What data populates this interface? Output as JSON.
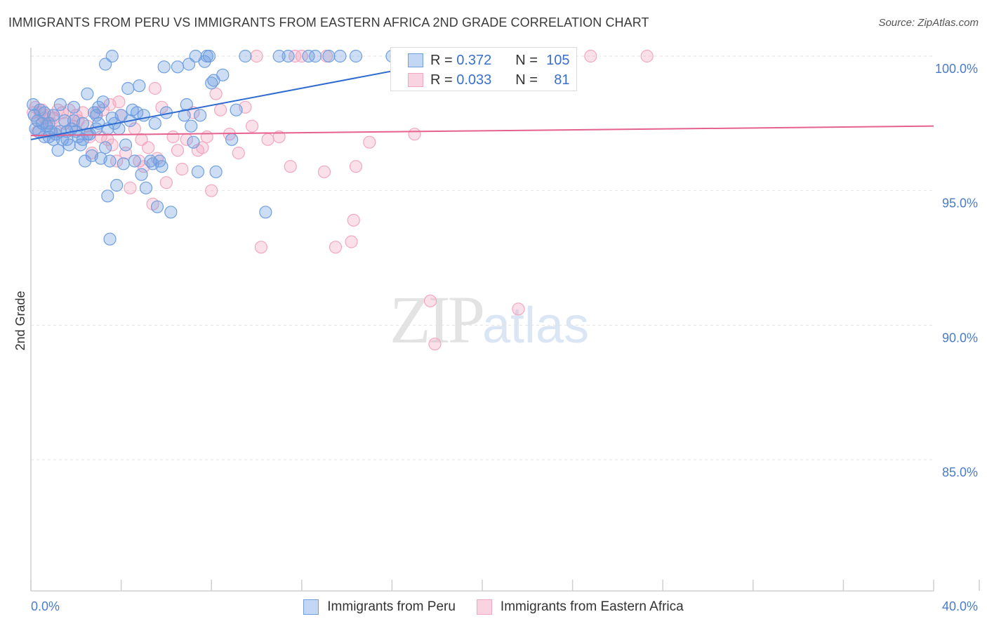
{
  "title": "IMMIGRANTS FROM PERU VS IMMIGRANTS FROM EASTERN AFRICA 2ND GRADE CORRELATION CHART",
  "source": "Source: ZipAtlas.com",
  "watermark": {
    "zip": "ZIP",
    "atlas": "atlas"
  },
  "legend_top": {
    "rows": [
      {
        "r_label": "R =",
        "r_value": "0.372",
        "n_label": "N =",
        "n_value": "105"
      },
      {
        "r_label": "R =",
        "r_value": "0.033",
        "n_label": "N =",
        "n_value": "81"
      }
    ]
  },
  "colors": {
    "series_a": "#6f9fe0",
    "series_a_line": "#2e6bd1",
    "series_b": "#f2a7bf",
    "series_b_line": "#e4628d",
    "tick_text": "#4a7cc9",
    "grid": "#e2e2e2"
  },
  "chart_data": {
    "type": "scatter",
    "title": "IMMIGRANTS FROM PERU VS IMMIGRANTS FROM EASTERN AFRICA 2ND GRADE CORRELATION CHART",
    "xlabel": "",
    "ylabel": "2nd Grade",
    "xlim": [
      0,
      40
    ],
    "ylim": [
      80.5,
      100.5
    ],
    "x_tick_labels": [
      "0.0%",
      "40.0%"
    ],
    "y_ticks": [
      85,
      90,
      95,
      100
    ],
    "y_tick_labels": [
      "85.0%",
      "90.0%",
      "95.0%",
      "100.0%"
    ],
    "legend": [
      "Immigrants from Peru",
      "Immigrants from Eastern Africa"
    ],
    "series": [
      {
        "name": "Immigrants from Peru",
        "trend": {
          "x": [
            0,
            19.5
          ],
          "y": [
            96.9,
            100.0
          ]
        },
        "points": [
          [
            0.1,
            98.2
          ],
          [
            0.15,
            97.8
          ],
          [
            0.2,
            97.3
          ],
          [
            0.3,
            97.6
          ],
          [
            0.35,
            97.2
          ],
          [
            0.4,
            98.0
          ],
          [
            0.5,
            97.5
          ],
          [
            0.6,
            97.9
          ],
          [
            0.7,
            97.4
          ],
          [
            0.8,
            97.0
          ],
          [
            0.9,
            97.2
          ],
          [
            1.0,
            97.8
          ],
          [
            1.1,
            97.1
          ],
          [
            1.2,
            96.5
          ],
          [
            1.3,
            98.2
          ],
          [
            1.4,
            96.9
          ],
          [
            1.5,
            97.6
          ],
          [
            1.6,
            97.2
          ],
          [
            1.7,
            96.7
          ],
          [
            1.8,
            97.3
          ],
          [
            1.9,
            98.1
          ],
          [
            2.0,
            97.2
          ],
          [
            2.1,
            97.0
          ],
          [
            2.2,
            96.7
          ],
          [
            2.3,
            97.5
          ],
          [
            2.4,
            96.1
          ],
          [
            2.5,
            98.6
          ],
          [
            2.6,
            97.1
          ],
          [
            2.7,
            96.3
          ],
          [
            2.8,
            97.9
          ],
          [
            2.9,
            97.3
          ],
          [
            3.0,
            98.1
          ],
          [
            3.1,
            96.2
          ],
          [
            3.2,
            98.3
          ],
          [
            3.3,
            96.6
          ],
          [
            3.4,
            97.3
          ],
          [
            3.5,
            96.1
          ],
          [
            3.6,
            97.7
          ],
          [
            3.7,
            97.5
          ],
          [
            3.8,
            95.2
          ],
          [
            3.9,
            97.3
          ],
          [
            4.0,
            97.8
          ],
          [
            4.2,
            96.7
          ],
          [
            4.3,
            98.8
          ],
          [
            4.4,
            97.6
          ],
          [
            4.5,
            98.0
          ],
          [
            4.6,
            96.1
          ],
          [
            4.8,
            98.9
          ],
          [
            4.9,
            95.6
          ],
          [
            5.0,
            97.8
          ],
          [
            5.1,
            95.1
          ],
          [
            5.3,
            96.1
          ],
          [
            5.5,
            97.5
          ],
          [
            5.6,
            94.4
          ],
          [
            5.7,
            96.1
          ],
          [
            5.8,
            95.9
          ],
          [
            5.9,
            99.6
          ],
          [
            6.0,
            97.9
          ],
          [
            6.2,
            94.2
          ],
          [
            6.5,
            99.6
          ],
          [
            6.8,
            97.8
          ],
          [
            6.9,
            98.2
          ],
          [
            7.0,
            99.7
          ],
          [
            7.1,
            97.4
          ],
          [
            7.2,
            96.8
          ],
          [
            7.3,
            100.0
          ],
          [
            7.4,
            95.7
          ],
          [
            7.5,
            97.8
          ],
          [
            7.7,
            99.8
          ],
          [
            7.8,
            100.0
          ],
          [
            7.9,
            100.0
          ],
          [
            8.0,
            99.0
          ],
          [
            8.1,
            99.1
          ],
          [
            8.2,
            95.7
          ],
          [
            8.5,
            99.3
          ],
          [
            8.9,
            96.9
          ],
          [
            9.1,
            98.0
          ],
          [
            9.5,
            100.0
          ],
          [
            10.4,
            94.2
          ],
          [
            11.0,
            100.0
          ],
          [
            11.4,
            100.0
          ],
          [
            12.3,
            100.0
          ],
          [
            12.6,
            100.0
          ],
          [
            13.2,
            100.0
          ],
          [
            13.7,
            100.0
          ],
          [
            14.4,
            100.0
          ],
          [
            16.0,
            100.0
          ],
          [
            16.2,
            100.0
          ],
          [
            3.5,
            93.2
          ],
          [
            3.4,
            94.8
          ],
          [
            3.3,
            99.7
          ],
          [
            3.6,
            100.0
          ],
          [
            1.0,
            96.9
          ],
          [
            1.6,
            96.9
          ],
          [
            4.1,
            96.0
          ],
          [
            2.5,
            97.1
          ],
          [
            0.6,
            97.0
          ],
          [
            1.3,
            97.2
          ],
          [
            0.8,
            97.5
          ],
          [
            2.9,
            97.8
          ],
          [
            4.7,
            97.9
          ],
          [
            5.4,
            96.0
          ],
          [
            3.0,
            97.5
          ],
          [
            1.9,
            97.6
          ],
          [
            2.3,
            96.9
          ]
        ]
      },
      {
        "name": "Immigrants from Eastern Africa",
        "trend": {
          "x": [
            0,
            40
          ],
          "y": [
            97.05,
            97.4
          ]
        },
        "points": [
          [
            0.1,
            97.9
          ],
          [
            0.2,
            98.1
          ],
          [
            0.3,
            97.6
          ],
          [
            0.4,
            97.9
          ],
          [
            0.5,
            98.0
          ],
          [
            0.6,
            97.7
          ],
          [
            0.7,
            97.5
          ],
          [
            0.8,
            97.8
          ],
          [
            1.0,
            97.7
          ],
          [
            1.2,
            98.0
          ],
          [
            1.4,
            97.9
          ],
          [
            1.5,
            97.5
          ],
          [
            1.7,
            98.0
          ],
          [
            1.9,
            97.4
          ],
          [
            2.1,
            97.6
          ],
          [
            2.3,
            97.9
          ],
          [
            2.5,
            97.4
          ],
          [
            2.7,
            96.4
          ],
          [
            2.9,
            97.9
          ],
          [
            3.1,
            97.0
          ],
          [
            3.2,
            98.0
          ],
          [
            3.4,
            96.9
          ],
          [
            3.5,
            98.2
          ],
          [
            3.6,
            96.7
          ],
          [
            3.8,
            96.1
          ],
          [
            4.0,
            97.8
          ],
          [
            4.2,
            96.4
          ],
          [
            4.4,
            95.1
          ],
          [
            4.6,
            97.3
          ],
          [
            4.8,
            96.1
          ],
          [
            5.0,
            95.9
          ],
          [
            5.2,
            96.6
          ],
          [
            5.4,
            94.5
          ],
          [
            5.6,
            96.2
          ],
          [
            5.8,
            98.1
          ],
          [
            6.0,
            95.3
          ],
          [
            6.3,
            97.0
          ],
          [
            6.5,
            96.5
          ],
          [
            6.7,
            95.8
          ],
          [
            6.9,
            96.9
          ],
          [
            7.2,
            97.9
          ],
          [
            7.4,
            96.5
          ],
          [
            7.6,
            96.6
          ],
          [
            7.8,
            97.0
          ],
          [
            8.0,
            95.0
          ],
          [
            8.2,
            98.6
          ],
          [
            8.4,
            98.0
          ],
          [
            8.8,
            97.1
          ],
          [
            9.2,
            96.4
          ],
          [
            9.5,
            98.1
          ],
          [
            9.8,
            97.4
          ],
          [
            10.2,
            92.9
          ],
          [
            10.5,
            96.9
          ],
          [
            11.0,
            97.0
          ],
          [
            11.5,
            95.9
          ],
          [
            12.0,
            100.0
          ],
          [
            13.0,
            95.7
          ],
          [
            13.1,
            100.0
          ],
          [
            13.5,
            92.9
          ],
          [
            14.2,
            93.1
          ],
          [
            14.3,
            93.9
          ],
          [
            14.4,
            95.9
          ],
          [
            15.0,
            96.8
          ],
          [
            17.0,
            97.1
          ],
          [
            17.7,
            90.9
          ],
          [
            17.9,
            89.3
          ],
          [
            18.3,
            100.0
          ],
          [
            21.6,
            90.6
          ],
          [
            22.3,
            100.0
          ],
          [
            24.8,
            100.0
          ],
          [
            27.3,
            100.0
          ],
          [
            10.0,
            100.0
          ],
          [
            11.7,
            100.0
          ],
          [
            2.0,
            97.8
          ],
          [
            3.9,
            98.3
          ],
          [
            5.5,
            98.8
          ],
          [
            1.1,
            97.2
          ],
          [
            0.9,
            97.5
          ],
          [
            2.6,
            97.0
          ],
          [
            4.9,
            96.9
          ],
          [
            0.3,
            97.2
          ]
        ]
      }
    ]
  }
}
